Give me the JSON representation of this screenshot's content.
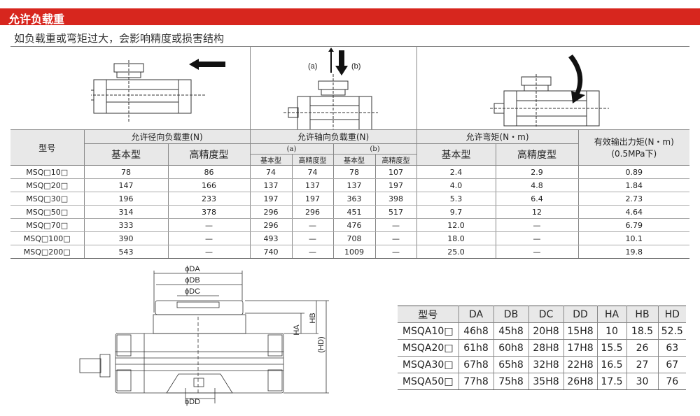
{
  "header": {
    "title": "允许负载重",
    "subtitle": "如负载重或弯矩过大，会影响精度或损害结构",
    "accent": "#d7261e"
  },
  "illustrations": {
    "axial_labels": {
      "a": "(a)",
      "b": "(b)"
    }
  },
  "load_table": {
    "headers": {
      "model": "型号",
      "radial": "允许径向负载重(N)",
      "axial": "允许轴向负载重(N)",
      "moment": "允许弯矩(N・m)",
      "torque": "有效输出力矩(N・m)",
      "torque_note": "(0.5MPa下)",
      "basic": "基本型",
      "precision": "高精度型",
      "a": "(a)",
      "b": "(b)"
    },
    "rows": [
      [
        "MSQ□10□",
        "78",
        "86",
        "74",
        "74",
        "78",
        "107",
        "2.4",
        "2.9",
        "0.89"
      ],
      [
        "MSQ□20□",
        "147",
        "166",
        "137",
        "137",
        "137",
        "197",
        "4.0",
        "4.8",
        "1.84"
      ],
      [
        "MSQ□30□",
        "196",
        "233",
        "197",
        "197",
        "363",
        "398",
        "5.3",
        "6.4",
        "2.73"
      ],
      [
        "MSQ□50□",
        "314",
        "378",
        "296",
        "296",
        "451",
        "517",
        "9.7",
        "12",
        "4.64"
      ],
      [
        "MSQ□70□",
        "333",
        "—",
        "296",
        "—",
        "476",
        "—",
        "12.0",
        "—",
        "6.79"
      ],
      [
        "MSQ□100□",
        "390",
        "—",
        "493",
        "—",
        "708",
        "—",
        "18.0",
        "—",
        "10.1"
      ],
      [
        "MSQ□200□",
        "543",
        "—",
        "740",
        "—",
        "1009",
        "—",
        "25.0",
        "—",
        "19.8"
      ]
    ]
  },
  "drawing": {
    "labels": {
      "da": "ϕDA",
      "db": "ϕDB",
      "dc": "ϕDC",
      "dd": "ϕDD",
      "ha": "HA",
      "hb": "HB",
      "hd": "(HD)"
    }
  },
  "dim_table": {
    "headers": [
      "型号",
      "DA",
      "DB",
      "DC",
      "DD",
      "HA",
      "HB",
      "HD"
    ],
    "rows": [
      [
        "MSQA10□",
        "46h8",
        "45h8",
        "20H8",
        "15H8",
        "10",
        "18.5",
        "52.5"
      ],
      [
        "MSQA20□",
        "61h8",
        "60h8",
        "28H8",
        "17H8",
        "15.5",
        "26",
        "63"
      ],
      [
        "MSQA30□",
        "67h8",
        "65h8",
        "32H8",
        "22H8",
        "16.5",
        "27",
        "67"
      ],
      [
        "MSQA50□",
        "77h8",
        "75h8",
        "35H8",
        "26H8",
        "17.5",
        "30",
        "76"
      ]
    ]
  }
}
